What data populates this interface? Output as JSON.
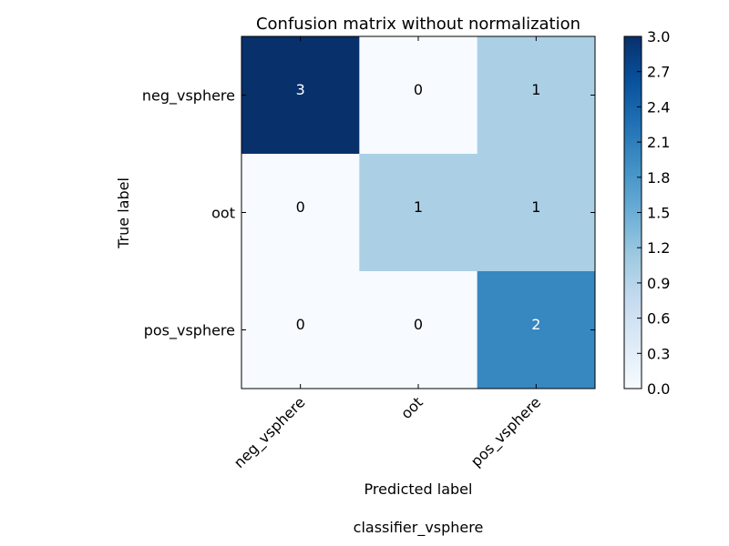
{
  "chart_data": {
    "type": "heatmap",
    "title": "Confusion matrix without normalization",
    "xlabel": "Predicted label",
    "ylabel": "True label",
    "x_categories": [
      "neg_vsphere",
      "oot",
      "pos_vsphere"
    ],
    "y_categories": [
      "neg_vsphere",
      "oot",
      "pos_vsphere"
    ],
    "values": [
      [
        3,
        0,
        1
      ],
      [
        0,
        1,
        1
      ],
      [
        0,
        0,
        2
      ]
    ],
    "colormap": "Blues",
    "colorbar": {
      "range": [
        0,
        3
      ],
      "ticks": [
        "0.0",
        "0.3",
        "0.6",
        "0.9",
        "1.2",
        "1.5",
        "1.8",
        "2.1",
        "2.4",
        "2.7",
        "3.0"
      ]
    },
    "caption": "classifier_vsphere"
  }
}
